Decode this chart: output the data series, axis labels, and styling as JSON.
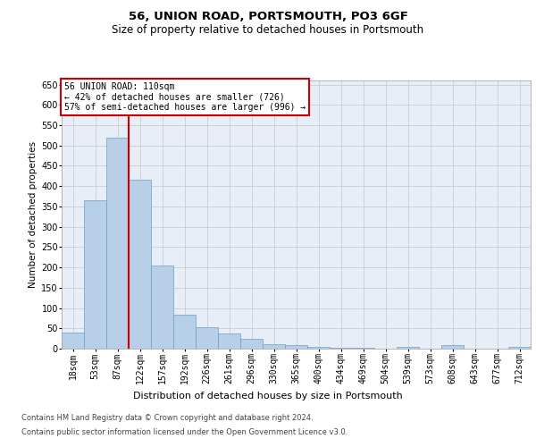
{
  "title1": "56, UNION ROAD, PORTSMOUTH, PO3 6GF",
  "title2": "Size of property relative to detached houses in Portsmouth",
  "xlabel": "Distribution of detached houses by size in Portsmouth",
  "ylabel": "Number of detached properties",
  "categories": [
    "18sqm",
    "53sqm",
    "87sqm",
    "122sqm",
    "157sqm",
    "192sqm",
    "226sqm",
    "261sqm",
    "296sqm",
    "330sqm",
    "365sqm",
    "400sqm",
    "434sqm",
    "469sqm",
    "504sqm",
    "539sqm",
    "573sqm",
    "608sqm",
    "643sqm",
    "677sqm",
    "712sqm"
  ],
  "values": [
    40,
    365,
    520,
    415,
    205,
    83,
    53,
    38,
    24,
    10,
    8,
    5,
    3,
    2,
    1,
    5,
    0,
    8,
    0,
    0,
    5
  ],
  "bar_color": "#b8cfe8",
  "bar_edge_color": "#6a9fc0",
  "grid_color": "#cccccc",
  "bg_color": "#e8eef8",
  "vline_color": "#cc0000",
  "vline_x": 2.5,
  "annotation_text": "56 UNION ROAD: 110sqm\n← 42% of detached houses are smaller (726)\n57% of semi-detached houses are larger (996) →",
  "ann_box_color": "#cc0000",
  "ylim_max": 660,
  "yticks": [
    0,
    50,
    100,
    150,
    200,
    250,
    300,
    350,
    400,
    450,
    500,
    550,
    600,
    650
  ],
  "footer1": "Contains HM Land Registry data © Crown copyright and database right 2024.",
  "footer2": "Contains public sector information licensed under the Open Government Licence v3.0.",
  "title1_fontsize": 9.5,
  "title2_fontsize": 8.5,
  "ylabel_fontsize": 7.5,
  "xlabel_fontsize": 8,
  "tick_fontsize": 7,
  "ann_fontsize": 7,
  "footer_fontsize": 6
}
